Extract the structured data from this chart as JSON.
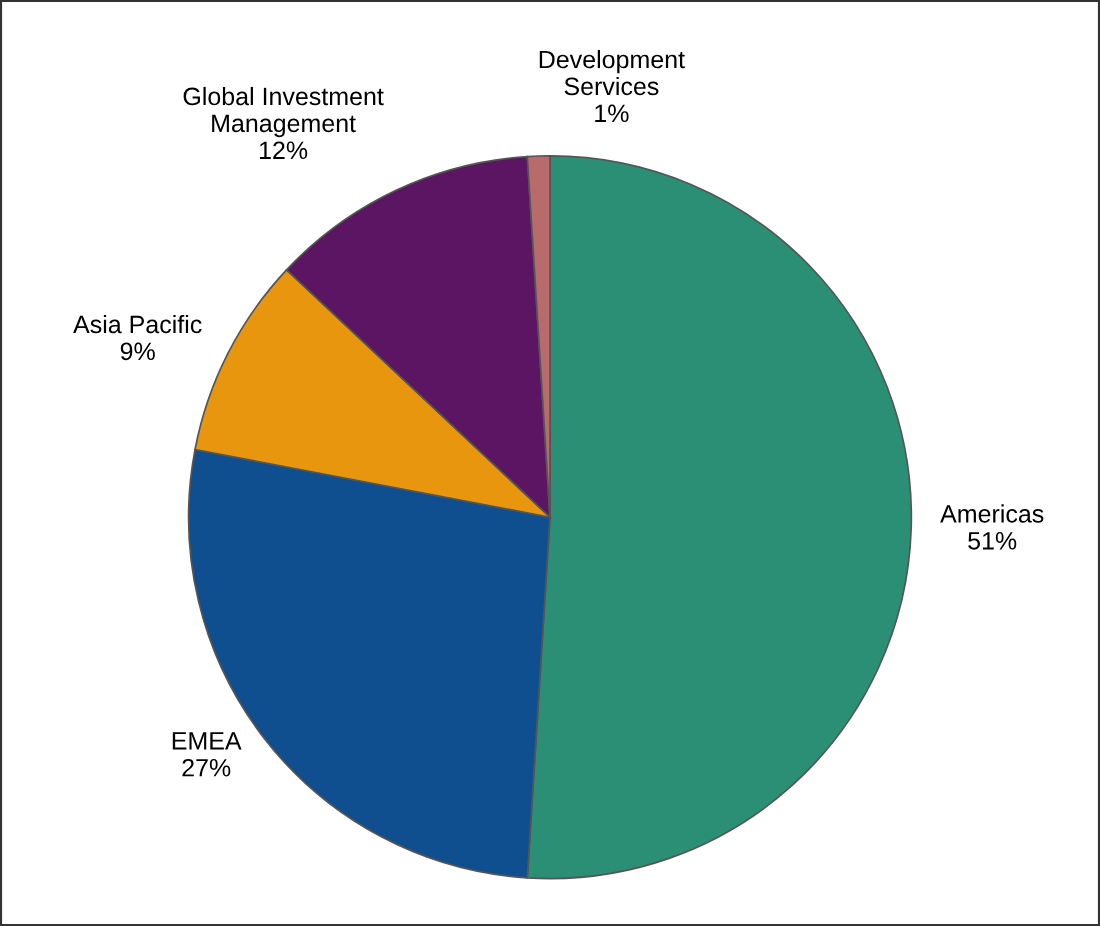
{
  "chart_data": {
    "type": "pie",
    "categories": [
      "Americas",
      "EMEA",
      "Asia Pacific",
      "Global Investment\nManagement",
      "Development\nServices"
    ],
    "values": [
      51,
      27,
      9,
      12,
      1
    ],
    "value_labels": [
      "51%",
      "27%",
      "9%",
      "12%",
      "1%"
    ],
    "colors": [
      "#2a8f74",
      "#0f4f8f",
      "#e8960e",
      "#5b1562",
      "#b76b6b"
    ]
  }
}
